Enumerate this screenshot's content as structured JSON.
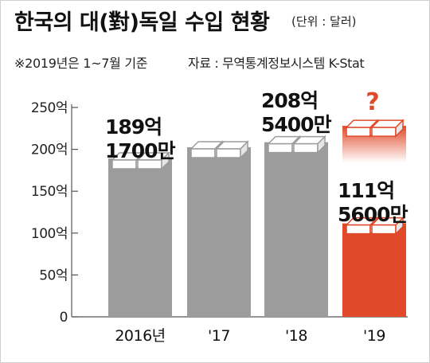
{
  "header": {
    "title": "한국의 대(對)독일 수입 현황",
    "unit": "(단위 : 달러)",
    "note": "※2019년은 1~7월 기준",
    "source": "자료 : 무역통계정보시스템 K-Stat"
  },
  "colors": {
    "bar": "#9c9c9c",
    "bar_highlight": "#e0492a",
    "axis": "#555555",
    "question_mark": "#e0492a"
  },
  "chart_data": {
    "type": "bar",
    "title": "한국의 대(對)독일 수입 현황",
    "ylabel": "",
    "xlabel": "",
    "categories": [
      "2016년",
      "'17",
      "'18",
      "'19"
    ],
    "values": [
      189.17,
      null,
      208.54,
      111.56
    ],
    "value_labels": [
      [
        "189억",
        "1700만"
      ],
      [],
      [
        "208억",
        "5400만"
      ],
      [
        "111억",
        "5600만"
      ]
    ],
    "ylim": [
      0,
      250
    ],
    "yticks": [
      0,
      50,
      100,
      150,
      200,
      250
    ],
    "ytick_labels": [
      "0",
      "50억",
      "100억",
      "150억",
      "200억",
      "250억"
    ],
    "highlight_index": 3,
    "annotation": "?",
    "grid": false
  }
}
